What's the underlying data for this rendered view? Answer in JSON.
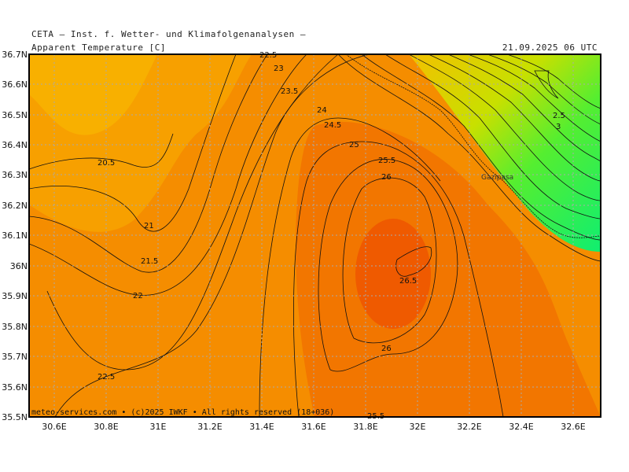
{
  "header": {
    "source": "CETA — Inst. f. Wetter- und Klimafolgenanalysen —",
    "variable": "Apparent Temperature [C]",
    "valid_time": "21.09.2025 06 UTC"
  },
  "footer": {
    "copyright": "meteo-services.com • (c)2025 IWKF • All rights reserved (18+036)"
  },
  "axes": {
    "x_ticks": [
      "30.6E",
      "30.8E",
      "31E",
      "31.2E",
      "31.4E",
      "31.6E",
      "31.8E",
      "32E",
      "32.2E",
      "32.4E",
      "32.6E"
    ],
    "y_ticks": [
      "36.7N",
      "36.6N",
      "36.5N",
      "36.4N",
      "36.3N",
      "36.2N",
      "36.1N",
      "36N",
      "35.9N",
      "35.8N",
      "35.7N",
      "35.6N",
      "35.5N"
    ]
  },
  "place_label": "Gazipasa",
  "contour_labels": [
    "22.5",
    "23",
    "23.5",
    "24",
    "24.5",
    "25",
    "25.5",
    "26",
    "20.5",
    "21",
    "21.5",
    "22",
    "22.5",
    "26.5",
    "26",
    "25.5",
    "2.5",
    "3"
  ],
  "colors": {
    "orange_light": "#f7a000",
    "orange": "#f58d00",
    "orange_dark": "#f27600",
    "red_orange": "#ef5a00",
    "green": "#22ee66"
  }
}
